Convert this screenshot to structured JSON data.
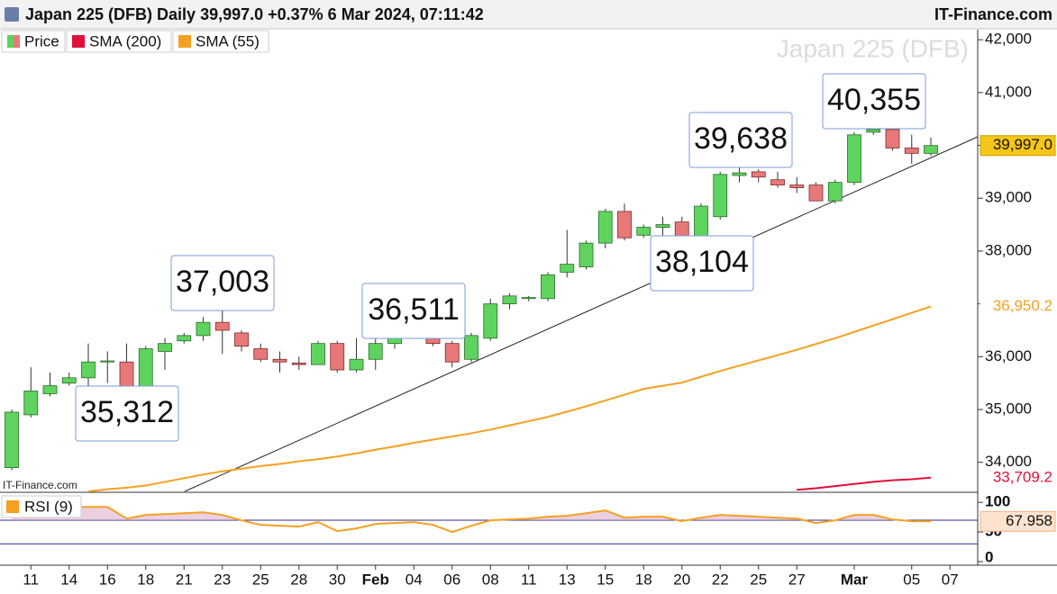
{
  "header": {
    "title": "Japan 225 (DFB) Daily 39,997.0 +0.37% 6 Mar 2024, 07:11:42",
    "site": "IT-Finance.com"
  },
  "chart_data": [
    {
      "type": "candlestick",
      "watermark": "Japan 225 (DFB)",
      "source": "IT-Finance.com",
      "categories": [
        null,
        "11",
        null,
        "14",
        null,
        "16",
        null,
        "18",
        null,
        "21",
        null,
        "23",
        null,
        "25",
        null,
        "28",
        null,
        "30",
        null,
        "Feb",
        null,
        "04",
        null,
        "06",
        null,
        "08",
        null,
        "11",
        null,
        "13",
        null,
        "15",
        null,
        "18",
        null,
        "20",
        null,
        "22",
        null,
        "25",
        null,
        "27",
        null,
        null,
        "Mar",
        null,
        null,
        "05",
        null,
        "07"
      ],
      "series": [
        {
          "name": "Price",
          "type": "candlestick",
          "up_color": "#5ed45e",
          "down_color": "#e87878",
          "last_label": "39,997.0",
          "label_color": "#f5c518",
          "open": [
            33900,
            34900,
            35300,
            35500,
            35600,
            35900,
            35900,
            35400,
            36100,
            36300,
            36400,
            36650,
            36450,
            36150,
            35950,
            35880,
            35850,
            36250,
            35750,
            35950,
            36250,
            36420,
            36450,
            36250,
            35950,
            36350,
            37000,
            37100,
            37100,
            37600,
            37700,
            38150,
            38750,
            38300,
            38450,
            38550,
            38250,
            38650,
            39430,
            39500,
            39350,
            39250,
            39250,
            38950,
            39300,
            40250,
            40300,
            39950,
            39850,
            null
          ],
          "high": [
            35000,
            35800,
            35700,
            35700,
            36250,
            36100,
            36250,
            36200,
            36350,
            36450,
            36750,
            37003,
            36500,
            36250,
            36100,
            36000,
            36300,
            36300,
            36350,
            36350,
            36450,
            36511,
            36500,
            36300,
            36450,
            37100,
            37200,
            37150,
            37600,
            38400,
            38200,
            38800,
            38900,
            38500,
            38650,
            38650,
            38900,
            39500,
            39638,
            39550,
            39500,
            39400,
            39300,
            39350,
            40250,
            40355,
            40320,
            40200,
            40150,
            null
          ],
          "low": [
            33850,
            34850,
            35250,
            35450,
            35450,
            35500,
            35312,
            35350,
            35750,
            36250,
            36300,
            36050,
            36100,
            35900,
            35700,
            35750,
            35850,
            35700,
            35700,
            35750,
            36150,
            36380,
            36200,
            35800,
            35900,
            36300,
            36900,
            37050,
            37050,
            37500,
            37650,
            38050,
            38200,
            38250,
            38300,
            38104,
            38200,
            38600,
            39300,
            39300,
            39200,
            39100,
            38950,
            38900,
            39250,
            40200,
            39900,
            39650,
            39800,
            null
          ],
          "close": [
            34950,
            35350,
            35450,
            35600,
            35900,
            35920,
            35400,
            36150,
            36250,
            36400,
            36650,
            36500,
            36200,
            35950,
            35900,
            35850,
            36250,
            35750,
            35950,
            36250,
            36400,
            36480,
            36250,
            35900,
            36400,
            37000,
            37150,
            37120,
            37550,
            37750,
            38150,
            38750,
            38250,
            38450,
            38500,
            38250,
            38850,
            39450,
            39480,
            39400,
            39250,
            39200,
            38950,
            39300,
            40200,
            40300,
            39950,
            39850,
            39997,
            null
          ]
        },
        {
          "name": "SMA (200)",
          "type": "line",
          "color": "#e0103a",
          "last_label": "33,709.2",
          "values": [
            null,
            null,
            null,
            null,
            null,
            null,
            null,
            null,
            null,
            null,
            null,
            null,
            null,
            null,
            null,
            null,
            null,
            null,
            null,
            null,
            null,
            null,
            null,
            null,
            null,
            null,
            null,
            null,
            null,
            null,
            null,
            null,
            null,
            null,
            null,
            null,
            null,
            null,
            null,
            null,
            null,
            33480,
            33510,
            33550,
            33590,
            33630,
            33660,
            33680,
            33709.2,
            null
          ]
        },
        {
          "name": "SMA (55)",
          "type": "line",
          "color": "#f5a020",
          "last_label": "36,950.2",
          "values": [
            null,
            null,
            null,
            null,
            33450,
            33490,
            33520,
            33560,
            33630,
            33700,
            33770,
            33830,
            33880,
            33930,
            33970,
            34020,
            34060,
            34110,
            34170,
            34240,
            34300,
            34370,
            34430,
            34490,
            34550,
            34620,
            34700,
            34780,
            34860,
            34960,
            35060,
            35170,
            35280,
            35390,
            35450,
            35510,
            35620,
            35730,
            35830,
            35930,
            36030,
            36130,
            36240,
            36350,
            36470,
            36590,
            36710,
            36830,
            36950.2,
            null
          ]
        }
      ],
      "annotations": [
        "35,312",
        "37,003",
        "36,511",
        "39,638",
        "38,104",
        "40,355"
      ],
      "ylim": [
        33450,
        42190
      ],
      "yticks": [
        {
          "value": 34000,
          "label": "34,000"
        },
        {
          "value": 35000,
          "label": "35,000"
        },
        {
          "value": 36000,
          "label": "36,000"
        },
        {
          "value": 37000,
          "label": "37,000"
        },
        {
          "value": 38000,
          "label": "38,000"
        },
        {
          "value": 39000,
          "label": "39,000"
        },
        {
          "value": 40000,
          "label": "40,000"
        },
        {
          "value": 41000,
          "label": "41,000"
        },
        {
          "value": 42000,
          "label": "42,000"
        }
      ],
      "grid": false
    },
    {
      "type": "line",
      "series": [
        {
          "name": "RSI (9)",
          "color": "#f5a020",
          "last_label": "67.958",
          "values": [
            92.4,
            92.4,
            92.4,
            92.4,
            92.4,
            92.4,
            72.7,
            78.8,
            80.3,
            81.8,
            83.3,
            78.8,
            69.7,
            62.1,
            60.6,
            59.1,
            66.7,
            51.5,
            56.1,
            63.6,
            65.2,
            66.7,
            62.1,
            50,
            60.6,
            69.7,
            71.2,
            72.7,
            75.8,
            77.3,
            81.8,
            86.4,
            74.2,
            75.8,
            75.8,
            68.2,
            74.2,
            78.8,
            77.3,
            75.8,
            74.2,
            72.7,
            65.2,
            69.7,
            78.8,
            78.8,
            71.2,
            68.2,
            67.958,
            null
          ]
        }
      ],
      "levels": [
        30,
        70
      ],
      "level_color": "#2b2b9a",
      "ylim": [
        -6,
        114
      ],
      "yticks": [
        0,
        50,
        100
      ]
    }
  ]
}
